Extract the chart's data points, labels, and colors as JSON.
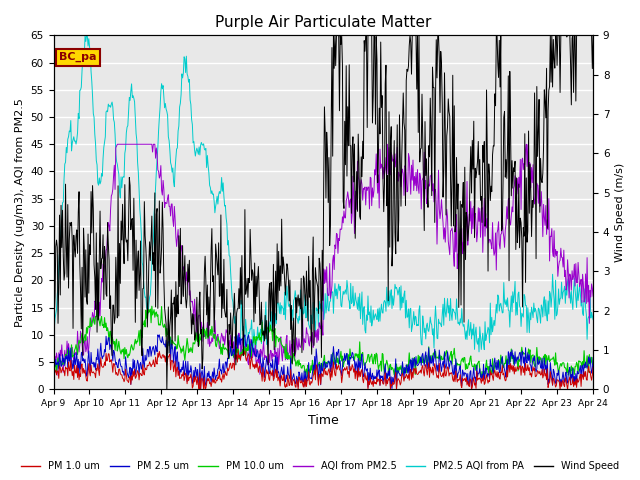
{
  "title": "Purple Air Particulate Matter",
  "xlabel": "Time",
  "ylabel_left": "Particle Density (ug/m3), AQI from PM2.5",
  "ylabel_right": "Wind Speed (m/s)",
  "ylim_left": [
    0,
    65
  ],
  "ylim_right": [
    0.0,
    9.0
  ],
  "yticks_left": [
    0,
    5,
    10,
    15,
    20,
    25,
    30,
    35,
    40,
    45,
    50,
    55,
    60,
    65
  ],
  "yticks_right": [
    0.0,
    1.0,
    2.0,
    3.0,
    4.0,
    5.0,
    6.0,
    7.0,
    8.0,
    9.0
  ],
  "xtick_labels": [
    "Apr 9",
    "Apr 10",
    "Apr 11",
    "Apr 12",
    "Apr 13",
    "Apr 14",
    "Apr 15",
    "Apr 16",
    "Apr 17",
    "Apr 18",
    "Apr 19",
    "Apr 20",
    "Apr 21",
    "Apr 22",
    "Apr 23",
    "Apr 24"
  ],
  "n_points": 720,
  "annotation_text": "BC_pa",
  "annotation_color": "#8B0000",
  "annotation_bg": "#FFD700",
  "legend_entries": [
    {
      "label": "PM 1.0 um",
      "color": "#cc0000",
      "lw": 1.0
    },
    {
      "label": "PM 2.5 um",
      "color": "#0000cc",
      "lw": 1.0
    },
    {
      "label": "PM 10.0 um",
      "color": "#00cc00",
      "lw": 1.0
    },
    {
      "label": "AQI from PM2.5",
      "color": "#9900cc",
      "lw": 1.0
    },
    {
      "label": "PM2.5 AQI from PA",
      "color": "#00cccc",
      "lw": 1.0
    },
    {
      "label": "Wind Speed",
      "color": "#000000",
      "lw": 1.0
    }
  ],
  "background_color": "#e8e8e8",
  "fig_width": 6.4,
  "fig_height": 4.8,
  "dpi": 100
}
